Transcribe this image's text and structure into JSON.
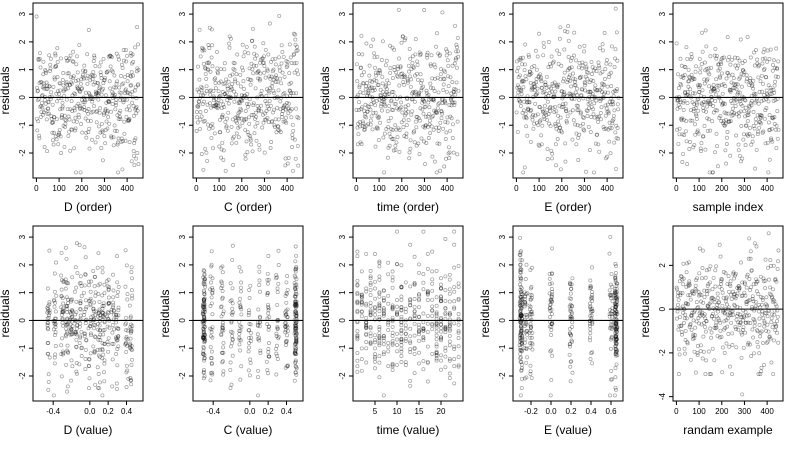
{
  "figure": {
    "rows": [
      [
        {
          "xlabel": "D (order)",
          "ylabel": "residuals",
          "xticks": [
            "0",
            "100",
            "200",
            "300",
            "400"
          ],
          "yticks": [
            "-2",
            "-1",
            "0",
            "1",
            "2",
            "3"
          ]
        },
        {
          "xlabel": "C (order)",
          "ylabel": "residuals",
          "xticks": [
            "0",
            "100",
            "200",
            "300",
            "400"
          ],
          "yticks": [
            "-2",
            "-1",
            "0",
            "1",
            "2",
            "3"
          ]
        },
        {
          "xlabel": "time (order)",
          "ylabel": "residuals",
          "xticks": [
            "0",
            "100",
            "200",
            "300",
            "400"
          ],
          "yticks": [
            "-2",
            "-1",
            "0",
            "1",
            "2",
            "3"
          ]
        },
        {
          "xlabel": "E (order)",
          "ylabel": "residuals",
          "xticks": [
            "0",
            "100",
            "200",
            "300",
            "400"
          ],
          "yticks": [
            "-2",
            "-1",
            "0",
            "1",
            "2",
            "3"
          ]
        },
        {
          "xlabel": "sample index",
          "ylabel": "residuals",
          "xticks": [
            "0",
            "100",
            "200",
            "300",
            "400"
          ],
          "yticks": [
            "-2",
            "-1",
            "0",
            "1",
            "2",
            "3"
          ]
        }
      ],
      [
        {
          "xlabel": "D (value)",
          "ylabel": "residuals",
          "xticks": [
            "-0.4",
            "0.0",
            "0.2",
            "0.4"
          ],
          "yticks": [
            "-2",
            "-1",
            "0",
            "1",
            "2",
            "3"
          ]
        },
        {
          "xlabel": "C (value)",
          "ylabel": "residuals",
          "xticks": [
            "-0.4",
            "0.0",
            "0.2",
            "0.4"
          ],
          "yticks": [
            "-2",
            "-1",
            "0",
            "1",
            "2",
            "3"
          ]
        },
        {
          "xlabel": "time (value)",
          "ylabel": "residuals",
          "xticks": [
            "5",
            "10",
            "15",
            "20"
          ],
          "yticks": [
            "-2",
            "-1",
            "0",
            "1",
            "2",
            "3"
          ]
        },
        {
          "xlabel": "E (value)",
          "ylabel": "residuals",
          "xticks": [
            "-0.2",
            "0.0",
            "0.2",
            "0.4",
            "0.6"
          ],
          "yticks": [
            "-2",
            "-1",
            "0",
            "1",
            "2",
            "3"
          ]
        },
        {
          "xlabel": "randam example",
          "ylabel": "residuals",
          "xticks": [
            "0",
            "100",
            "200",
            "300",
            "400"
          ],
          "yticks": [
            "-4",
            "-2",
            "0",
            "2"
          ]
        }
      ]
    ]
  },
  "chart_data": [
    {
      "type": "scatter",
      "xlabel": "D (order)",
      "ylabel": "residuals",
      "xlim": [
        -15,
        470
      ],
      "ylim": [
        -2.9,
        3.4
      ],
      "x_from": 1,
      "x_to": 450,
      "n_points": 450,
      "reference_line_y": 0,
      "x_structure": "uniform",
      "extra_points": [
        {
          "x": 430,
          "y": -2.1
        },
        {
          "x": 440,
          "y": -2.2
        },
        {
          "x": 450,
          "y": -2.4
        },
        {
          "x": 420,
          "y": -2.3
        },
        {
          "x": 445,
          "y": -2.0
        }
      ]
    },
    {
      "type": "scatter",
      "xlabel": "C (order)",
      "ylabel": "residuals",
      "xlim": [
        -15,
        470
      ],
      "ylim": [
        -2.9,
        3.4
      ],
      "x_from": 1,
      "x_to": 450,
      "n_points": 450,
      "reference_line_y": 0,
      "x_structure": "uniform"
    },
    {
      "type": "scatter",
      "xlabel": "time (order)",
      "ylabel": "residuals",
      "xlim": [
        -15,
        470
      ],
      "ylim": [
        -2.9,
        3.4
      ],
      "x_from": 1,
      "x_to": 450,
      "n_points": 450,
      "reference_line_y": 0,
      "x_structure": "uniform"
    },
    {
      "type": "scatter",
      "xlabel": "E (order)",
      "ylabel": "residuals",
      "xlim": [
        -15,
        470
      ],
      "ylim": [
        -2.9,
        3.4
      ],
      "x_from": 1,
      "x_to": 450,
      "n_points": 450,
      "reference_line_y": 0,
      "x_structure": "uniform"
    },
    {
      "type": "scatter",
      "xlabel": "sample index",
      "ylabel": "residuals",
      "xlim": [
        -15,
        470
      ],
      "ylim": [
        -2.9,
        3.4
      ],
      "x_from": 1,
      "x_to": 450,
      "n_points": 450,
      "reference_line_y": 0,
      "x_structure": "uniform",
      "extra_points": [
        {
          "x": 280,
          "y": -2.1
        },
        {
          "x": 285,
          "y": -2.3
        },
        {
          "x": 290,
          "y": -2.2
        },
        {
          "x": 275,
          "y": -1.9
        }
      ]
    },
    {
      "type": "scatter",
      "xlabel": "D (value)",
      "ylabel": "residuals",
      "xlim": [
        -0.62,
        0.58
      ],
      "ylim": [
        -2.9,
        3.4
      ],
      "x_from": -0.5,
      "x_to": 0.5,
      "n_points": 450,
      "reference_line_y": 0,
      "x_structure": "clustered",
      "x_centers": [
        -0.45,
        -0.38,
        -0.3,
        -0.25,
        -0.2,
        -0.15,
        -0.1,
        -0.05,
        0.0,
        0.05,
        0.1,
        0.15,
        0.2,
        0.25,
        0.3,
        0.4,
        0.45
      ],
      "extra_points": [
        {
          "x": 0.42,
          "y": -2.1
        },
        {
          "x": 0.45,
          "y": -2.3
        },
        {
          "x": 0.4,
          "y": -2.4
        }
      ]
    },
    {
      "type": "scatter",
      "xlabel": "C (value)",
      "ylabel": "residuals",
      "xlim": [
        -0.62,
        0.58
      ],
      "ylim": [
        -2.9,
        3.4
      ],
      "x_from": -0.5,
      "x_to": 0.5,
      "n_points": 450,
      "reference_line_y": 0,
      "x_structure": "clustered",
      "x_centers": [
        -0.5,
        -0.42,
        -0.3,
        -0.2,
        -0.1,
        0.0,
        0.1,
        0.2,
        0.3,
        0.4,
        0.5
      ],
      "x_edge_mass": [
        -0.5,
        0.5
      ]
    },
    {
      "type": "scatter",
      "xlabel": "time (value)",
      "ylabel": "residuals",
      "xlim": [
        0,
        25
      ],
      "ylim": [
        -2.9,
        3.4
      ],
      "x_from": 1,
      "x_to": 24,
      "n_points": 450,
      "reference_line_y": 0,
      "x_structure": "integers"
    },
    {
      "type": "scatter",
      "xlabel": "E (value)",
      "ylabel": "residuals",
      "xlim": [
        -0.38,
        0.72
      ],
      "ylim": [
        -2.9,
        3.4
      ],
      "x_from": -0.3,
      "x_to": 0.65,
      "n_points": 450,
      "reference_line_y": 0,
      "x_structure": "clustered",
      "x_centers": [
        -0.3,
        -0.25,
        -0.2,
        0.0,
        0.2,
        0.4,
        0.6,
        0.65
      ],
      "x_edge_mass": [
        -0.3,
        0.65
      ]
    },
    {
      "type": "scatter",
      "xlabel": "randam example",
      "ylabel": "residuals",
      "xlim": [
        -15,
        470
      ],
      "ylim": [
        -4.2,
        3.8
      ],
      "x_from": 1,
      "x_to": 450,
      "n_points": 450,
      "reference_line_y": 0,
      "x_structure": "uniform",
      "extra_points": [
        {
          "x": 290,
          "y": -3.9
        }
      ]
    }
  ]
}
